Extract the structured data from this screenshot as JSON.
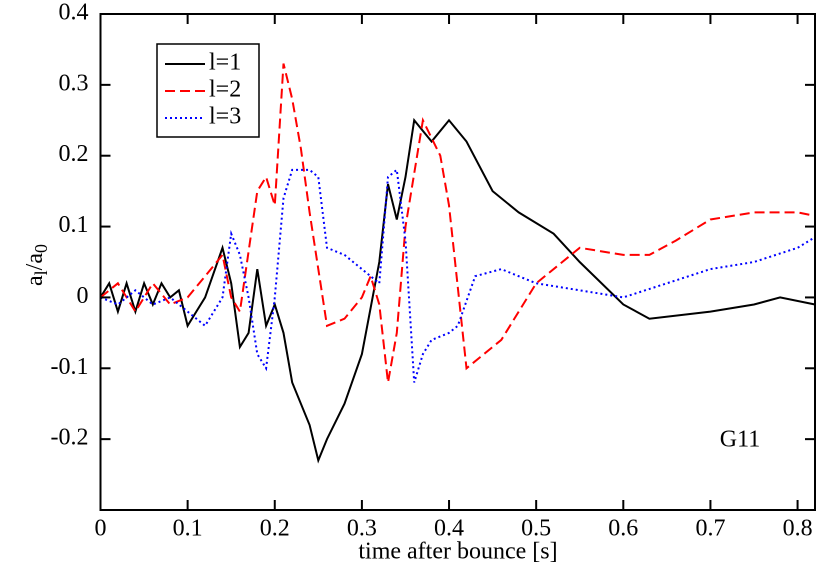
{
  "chart_data": {
    "type": "line",
    "x_label": "time after bounce [s]",
    "y_label_parts": [
      "a",
      "l",
      "/a",
      "0"
    ],
    "annotation": "G11",
    "xlim": [
      0,
      0.82
    ],
    "ylim": [
      -0.3,
      0.4
    ],
    "xticks": [
      0,
      0.1,
      0.2,
      0.3,
      0.4,
      0.5,
      0.6,
      0.7,
      0.8
    ],
    "yticks": [
      -0.2,
      -0.1,
      0,
      0.1,
      0.2,
      0.3,
      0.4
    ],
    "legend": "upper-left",
    "series": [
      {
        "name": "l=1",
        "color": "#000000",
        "dash": "solid",
        "x": [
          0,
          0.01,
          0.02,
          0.03,
          0.04,
          0.05,
          0.06,
          0.07,
          0.08,
          0.09,
          0.1,
          0.11,
          0.12,
          0.14,
          0.15,
          0.16,
          0.17,
          0.18,
          0.19,
          0.2,
          0.21,
          0.22,
          0.24,
          0.25,
          0.26,
          0.28,
          0.3,
          0.32,
          0.33,
          0.34,
          0.35,
          0.36,
          0.38,
          0.4,
          0.42,
          0.45,
          0.48,
          0.52,
          0.55,
          0.6,
          0.63,
          0.7,
          0.75,
          0.78,
          0.82
        ],
        "values": [
          0,
          0.02,
          -0.02,
          0.02,
          -0.02,
          0.02,
          -0.01,
          0.02,
          0,
          0.01,
          -0.04,
          -0.02,
          0,
          0.07,
          0.02,
          -0.07,
          -0.05,
          0.04,
          -0.04,
          -0.01,
          -0.05,
          -0.12,
          -0.18,
          -0.23,
          -0.2,
          -0.15,
          -0.08,
          0.05,
          0.16,
          0.11,
          0.17,
          0.25,
          0.22,
          0.25,
          0.22,
          0.15,
          0.12,
          0.09,
          0.05,
          -0.01,
          -0.03,
          -0.02,
          -0.01,
          0,
          -0.01
        ]
      },
      {
        "name": "l=2",
        "color": "#ff0000",
        "dash": "dashed",
        "x": [
          0,
          0.02,
          0.04,
          0.06,
          0.08,
          0.1,
          0.12,
          0.14,
          0.15,
          0.16,
          0.18,
          0.19,
          0.2,
          0.21,
          0.22,
          0.23,
          0.24,
          0.25,
          0.26,
          0.28,
          0.3,
          0.31,
          0.32,
          0.33,
          0.34,
          0.35,
          0.37,
          0.39,
          0.4,
          0.42,
          0.44,
          0.46,
          0.5,
          0.55,
          0.6,
          0.63,
          0.66,
          0.7,
          0.75,
          0.8,
          0.82
        ],
        "values": [
          0,
          0.02,
          -0.02,
          0.02,
          -0.01,
          0,
          0.03,
          0.06,
          0,
          -0.02,
          0.15,
          0.17,
          0.13,
          0.33,
          0.28,
          0.21,
          0.12,
          0.04,
          -0.04,
          -0.03,
          0,
          0.03,
          -0.01,
          -0.12,
          -0.05,
          0.1,
          0.25,
          0.2,
          0.13,
          -0.1,
          -0.08,
          -0.06,
          0.02,
          0.07,
          0.06,
          0.06,
          0.08,
          0.11,
          0.12,
          0.12,
          0.115
        ]
      },
      {
        "name": "l=3",
        "color": "#0000ff",
        "dash": "dotted",
        "x": [
          0,
          0.02,
          0.04,
          0.06,
          0.08,
          0.1,
          0.12,
          0.14,
          0.15,
          0.16,
          0.17,
          0.18,
          0.19,
          0.2,
          0.21,
          0.22,
          0.24,
          0.25,
          0.26,
          0.28,
          0.3,
          0.31,
          0.32,
          0.33,
          0.34,
          0.35,
          0.36,
          0.37,
          0.38,
          0.4,
          0.41,
          0.43,
          0.46,
          0.48,
          0.5,
          0.55,
          0.6,
          0.65,
          0.7,
          0.75,
          0.8,
          0.82
        ],
        "values": [
          0,
          -0.01,
          0.01,
          -0.01,
          0,
          -0.02,
          -0.04,
          0,
          0.09,
          0.06,
          0,
          -0.08,
          -0.1,
          0,
          0.14,
          0.18,
          0.18,
          0.17,
          0.07,
          0.06,
          0.04,
          0.03,
          0.02,
          0.17,
          0.18,
          0.08,
          -0.12,
          -0.08,
          -0.06,
          -0.05,
          -0.04,
          0.03,
          0.04,
          0.03,
          0.02,
          0.01,
          0,
          0.02,
          0.04,
          0.05,
          0.07,
          0.085
        ]
      }
    ]
  }
}
